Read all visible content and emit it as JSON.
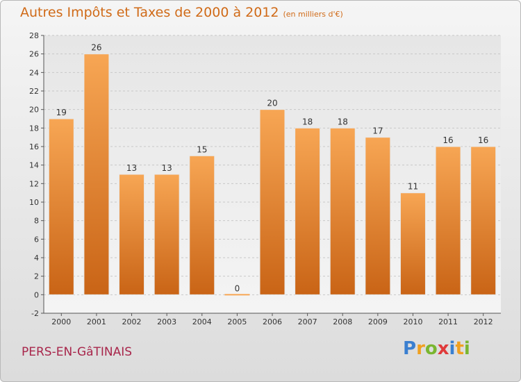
{
  "header": {
    "title": "Autres Impôts et Taxes de 2000 à 2012",
    "unit": "(en milliers d'€)"
  },
  "footer": {
    "commune": "PERS-EN-GâTINAIS",
    "logo": {
      "letters": [
        "P",
        "r",
        "o",
        "x",
        "i",
        "t",
        "i"
      ],
      "colors": [
        "#3a7fd0",
        "#f0a020",
        "#7ab630",
        "#e03a3a",
        "#3a7fd0",
        "#f0a020",
        "#7ab630"
      ]
    }
  },
  "chart_data": {
    "type": "bar",
    "categories": [
      "2000",
      "2001",
      "2002",
      "2003",
      "2004",
      "2005",
      "2006",
      "2007",
      "2008",
      "2009",
      "2010",
      "2011",
      "2012"
    ],
    "values": [
      19,
      26,
      13,
      13,
      15,
      0,
      20,
      18,
      18,
      17,
      11,
      16,
      16
    ],
    "title": "Autres Impôts et Taxes de 2000 à 2012",
    "ylim": [
      -2,
      28
    ],
    "yticks": [
      -2,
      0,
      2,
      4,
      6,
      8,
      10,
      12,
      14,
      16,
      18,
      20,
      22,
      24,
      26,
      28
    ],
    "grid": true,
    "bar_color_top": "#f7a654",
    "bar_color_bottom": "#c96416"
  }
}
